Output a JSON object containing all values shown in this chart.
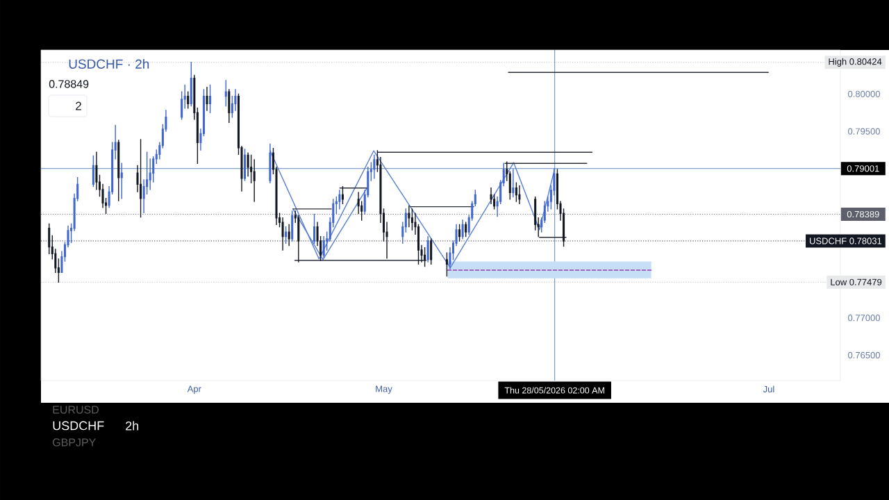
{
  "chart_data": {
    "type": "candlestick",
    "title": "USDCHF · 2h",
    "annotations": [
      "0.78849",
      "2",
      "EURUSD",
      "USDCHF",
      "2h",
      "GBPJPY"
    ],
    "x": [
      "2026-03-09T00:00",
      "2026-03-09T12:00",
      "2026-03-10T00:00",
      "2026-03-10T12:00",
      "2026-03-11T00:00",
      "2026-03-11T12:00",
      "2026-03-12T00:00",
      "2026-03-12T12:00",
      "2026-03-13T00:00",
      "2026-03-13T12:00",
      "2026-03-16T00:00",
      "2026-03-16T12:00",
      "2026-03-17T00:00",
      "2026-03-17T12:00",
      "2026-03-18T00:00",
      "2026-03-18T12:00",
      "2026-03-19T00:00",
      "2026-03-19T12:00",
      "2026-03-20T00:00",
      "2026-03-20T12:00",
      "2026-03-23T00:00",
      "2026-03-23T12:00",
      "2026-03-24T00:00",
      "2026-03-24T12:00",
      "2026-03-25T00:00",
      "2026-03-25T12:00",
      "2026-03-26T00:00",
      "2026-03-26T12:00",
      "2026-03-27T00:00",
      "2026-03-27T12:00",
      "2026-03-30T00:00",
      "2026-03-30T12:00",
      "2026-03-31T00:00",
      "2026-03-31T12:00",
      "2026-04-01T00:00",
      "2026-04-01T12:00",
      "2026-04-02T00:00",
      "2026-04-02T12:00",
      "2026-04-03T00:00",
      "2026-04-03T12:00",
      "2026-04-06T00:00",
      "2026-04-06T12:00",
      "2026-04-07T00:00",
      "2026-04-07T12:00",
      "2026-04-08T00:00",
      "2026-04-08T12:00",
      "2026-04-09T00:00",
      "2026-04-09T12:00",
      "2026-04-10T00:00",
      "2026-04-10T12:00",
      "2026-04-13T00:00",
      "2026-04-13T12:00",
      "2026-04-14T00:00",
      "2026-04-14T12:00",
      "2026-04-15T00:00",
      "2026-04-15T12:00",
      "2026-04-16T00:00",
      "2026-04-16T12:00",
      "2026-04-17T00:00",
      "2026-04-17T12:00",
      "2026-04-20T00:00",
      "2026-04-20T12:00",
      "2026-04-21T00:00",
      "2026-04-21T12:00",
      "2026-04-22T00:00",
      "2026-04-22T12:00",
      "2026-04-23T00:00",
      "2026-04-23T12:00",
      "2026-04-24T00:00",
      "2026-04-24T12:00",
      "2026-04-27T00:00",
      "2026-04-27T12:00",
      "2026-04-28T00:00",
      "2026-04-28T12:00",
      "2026-04-29T00:00",
      "2026-04-29T12:00",
      "2026-04-30T00:00",
      "2026-04-30T12:00",
      "2026-05-01T00:00",
      "2026-05-01T12:00",
      "2026-05-04T00:00",
      "2026-05-04T12:00",
      "2026-05-05T00:00",
      "2026-05-05T12:00",
      "2026-05-06T00:00",
      "2026-05-06T12:00",
      "2026-05-07T00:00",
      "2026-05-07T12:00",
      "2026-05-08T00:00",
      "2026-05-08T12:00",
      "2026-05-11T00:00",
      "2026-05-11T12:00",
      "2026-05-12T00:00",
      "2026-05-12T12:00",
      "2026-05-13T00:00",
      "2026-05-13T12:00",
      "2026-05-14T00:00",
      "2026-05-14T12:00",
      "2026-05-15T00:00",
      "2026-05-15T12:00",
      "2026-05-18T00:00",
      "2026-05-18T12:00",
      "2026-05-19T00:00",
      "2026-05-19T12:00",
      "2026-05-20T00:00",
      "2026-05-20T12:00",
      "2026-05-21T00:00",
      "2026-05-21T12:00",
      "2026-05-22T00:00",
      "2026-05-22T12:00",
      "2026-05-25T00:00",
      "2026-05-25T12:00",
      "2026-05-26T00:00",
      "2026-05-26T12:00",
      "2026-05-27T00:00",
      "2026-05-27T12:00",
      "2026-05-28T00:00",
      "2026-05-28T12:00",
      "2026-05-29T00:00",
      "2026-05-29T12:00"
    ],
    "ohlc": [
      [
        0.782,
        0.7826,
        0.7786,
        0.7795
      ],
      [
        0.7795,
        0.781,
        0.7779,
        0.7786
      ],
      [
        0.7786,
        0.7792,
        0.7761,
        0.7767
      ],
      [
        0.7767,
        0.7779,
        0.77479,
        0.7761
      ],
      [
        0.7761,
        0.7789,
        0.7761,
        0.7782
      ],
      [
        0.7782,
        0.7801,
        0.7776,
        0.7798
      ],
      [
        0.7798,
        0.7823,
        0.7795,
        0.7817
      ],
      [
        0.7817,
        0.7826,
        0.7801,
        0.782
      ],
      [
        0.782,
        0.7866,
        0.7817,
        0.786
      ],
      [
        0.786,
        0.7888,
        0.7857,
        0.7879
      ],
      [
        0.7879,
        0.7917,
        0.7876,
        0.7904
      ],
      [
        0.7904,
        0.7922,
        0.7872,
        0.7882
      ],
      [
        0.7882,
        0.7891,
        0.7863,
        0.7872
      ],
      [
        0.7872,
        0.7879,
        0.7848,
        0.7854
      ],
      [
        0.7854,
        0.786,
        0.784,
        0.7851
      ],
      [
        0.7851,
        0.7876,
        0.7848,
        0.7869
      ],
      [
        0.7869,
        0.7935,
        0.7866,
        0.7925
      ],
      [
        0.7925,
        0.7958,
        0.7913,
        0.7935
      ],
      [
        0.7935,
        0.7938,
        0.7857,
        0.7888
      ],
      [
        0.7888,
        0.7907,
        0.786,
        0.7894
      ],
      [
        0.7894,
        0.7904,
        0.7869,
        0.7879
      ],
      [
        0.7879,
        0.7939,
        0.7835,
        0.786
      ],
      [
        0.786,
        0.7885,
        0.7841,
        0.7876
      ],
      [
        0.7876,
        0.7922,
        0.7866,
        0.7885
      ],
      [
        0.7885,
        0.7913,
        0.7872,
        0.7894
      ],
      [
        0.7894,
        0.7916,
        0.7882,
        0.7913
      ],
      [
        0.7913,
        0.7925,
        0.7907,
        0.7919
      ],
      [
        0.7919,
        0.7935,
        0.7913,
        0.7931
      ],
      [
        0.7931,
        0.7959,
        0.7928,
        0.7953
      ],
      [
        0.7953,
        0.7978,
        0.795,
        0.7969
      ],
      [
        0.7969,
        0.8003,
        0.7966,
        0.7993
      ],
      [
        0.7993,
        0.8012,
        0.7981,
        0.7997
      ],
      [
        0.7997,
        0.8003,
        0.7981,
        0.7987
      ],
      [
        0.7987,
        0.80424,
        0.7984,
        0.8021
      ],
      [
        0.8021,
        0.8025,
        0.7966,
        0.7975
      ],
      [
        0.7975,
        0.7981,
        0.7907,
        0.7935
      ],
      [
        0.7935,
        0.7953,
        0.7925,
        0.7947
      ],
      [
        0.7947,
        0.8006,
        0.7944,
        0.7997
      ],
      [
        0.7997,
        0.8009,
        0.7978,
        0.7987
      ],
      [
        0.7987,
        0.8012,
        0.7975,
        0.7997
      ],
      [
        0.7997,
        0.8018,
        0.7984,
        0.8003
      ],
      [
        0.8003,
        0.8006,
        0.7962,
        0.7975
      ],
      [
        0.7975,
        0.7997,
        0.7969,
        0.7987
      ],
      [
        0.7987,
        0.8006,
        0.7978,
        0.7997
      ],
      [
        0.7997,
        0.8,
        0.7919,
        0.7928
      ],
      [
        0.7928,
        0.793,
        0.787,
        0.7887
      ],
      [
        0.7887,
        0.7926,
        0.7884,
        0.7918
      ],
      [
        0.7918,
        0.7921,
        0.789,
        0.7902
      ],
      [
        0.7902,
        0.7918,
        0.7881,
        0.7896
      ],
      [
        0.7896,
        0.7912,
        0.7856,
        0.7884
      ],
      [
        0.7884,
        0.7933,
        0.7881,
        0.7921
      ],
      [
        0.7921,
        0.7927,
        0.7893,
        0.7899
      ],
      [
        0.7899,
        0.7902,
        0.7825,
        0.7834
      ],
      [
        0.7834,
        0.784,
        0.7822,
        0.7828
      ],
      [
        0.7828,
        0.7834,
        0.7791,
        0.7809
      ],
      [
        0.7809,
        0.7822,
        0.78,
        0.7815
      ],
      [
        0.7815,
        0.7825,
        0.7797,
        0.7806
      ],
      [
        0.7806,
        0.7843,
        0.7803,
        0.7837
      ],
      [
        0.7837,
        0.7843,
        0.7828,
        0.7834
      ],
      [
        0.7834,
        0.7837,
        0.7775,
        0.7803
      ],
      [
        0.7803,
        0.7839,
        0.78,
        0.7822
      ],
      [
        0.7822,
        0.7828,
        0.7797,
        0.7803
      ],
      [
        0.7803,
        0.7809,
        0.7777,
        0.7784
      ],
      [
        0.7784,
        0.7809,
        0.7781,
        0.7803
      ],
      [
        0.7803,
        0.7815,
        0.7791,
        0.7806
      ],
      [
        0.7806,
        0.7834,
        0.7803,
        0.7828
      ],
      [
        0.7828,
        0.7859,
        0.7822,
        0.7853
      ],
      [
        0.7853,
        0.7862,
        0.784,
        0.7856
      ],
      [
        0.7856,
        0.7871,
        0.7846,
        0.7865
      ],
      [
        0.7865,
        0.7876,
        0.7853,
        0.7859
      ],
      [
        0.7859,
        0.7868,
        0.784,
        0.785
      ],
      [
        0.785,
        0.7856,
        0.7831,
        0.7843
      ],
      [
        0.7843,
        0.7871,
        0.7839,
        0.7865
      ],
      [
        0.7865,
        0.7902,
        0.7862,
        0.7896
      ],
      [
        0.7896,
        0.7908,
        0.7884,
        0.7899
      ],
      [
        0.7899,
        0.7918,
        0.7887,
        0.7912
      ],
      [
        0.7912,
        0.7924,
        0.7896,
        0.7905
      ],
      [
        0.7905,
        0.7915,
        0.7828,
        0.784
      ],
      [
        0.784,
        0.7846,
        0.7803,
        0.7815
      ],
      [
        0.7815,
        0.7828,
        0.778,
        0.7809
      ],
      [
        0.7809,
        0.7828,
        0.78,
        0.7822
      ],
      [
        0.7822,
        0.7846,
        0.7815,
        0.784
      ],
      [
        0.784,
        0.785,
        0.7822,
        0.7834
      ],
      [
        0.7834,
        0.7846,
        0.7818,
        0.7828
      ],
      [
        0.7828,
        0.784,
        0.7812,
        0.7822
      ],
      [
        0.7822,
        0.7825,
        0.7772,
        0.7791
      ],
      [
        0.7791,
        0.7797,
        0.7775,
        0.7784
      ],
      [
        0.7784,
        0.7794,
        0.7769,
        0.7778
      ],
      [
        0.7778,
        0.7809,
        0.7775,
        0.7803
      ],
      [
        0.7803,
        0.7806,
        0.7772,
        0.7778
      ],
      [
        0.7778,
        0.7787,
        0.7756,
        0.7772
      ],
      [
        0.7772,
        0.7794,
        0.7766,
        0.7787
      ],
      [
        0.7787,
        0.7803,
        0.7778,
        0.78
      ],
      [
        0.78,
        0.7825,
        0.7797,
        0.7818
      ],
      [
        0.7818,
        0.7825,
        0.7803,
        0.7809
      ],
      [
        0.7809,
        0.7831,
        0.7806,
        0.7825
      ],
      [
        0.7825,
        0.7828,
        0.7809,
        0.7815
      ],
      [
        0.7815,
        0.7837,
        0.7812,
        0.7834
      ],
      [
        0.7834,
        0.7856,
        0.7831,
        0.7853
      ],
      [
        0.7853,
        0.7871,
        0.785,
        0.7865
      ],
      [
        0.7865,
        0.7874,
        0.7853,
        0.7859
      ],
      [
        0.7859,
        0.7865,
        0.7846,
        0.785
      ],
      [
        0.785,
        0.7862,
        0.7836,
        0.7856
      ],
      [
        0.7856,
        0.7884,
        0.7853,
        0.7881
      ],
      [
        0.7881,
        0.7907,
        0.7877,
        0.7899
      ],
      [
        0.7899,
        0.7909,
        0.7884,
        0.7893
      ],
      [
        0.7893,
        0.7896,
        0.7859,
        0.7868
      ],
      [
        0.7868,
        0.7899,
        0.7862,
        0.7874
      ],
      [
        0.7874,
        0.7881,
        0.7856,
        0.7865
      ],
      [
        0.7865,
        0.7877,
        0.7853,
        0.7859
      ],
      [
        0.7859,
        0.7862,
        0.7818,
        0.7825
      ],
      [
        0.7825,
        0.7834,
        0.7809,
        0.7822
      ],
      [
        0.7822,
        0.7834,
        0.7815,
        0.7831
      ],
      [
        0.7831,
        0.7856,
        0.7828,
        0.785
      ],
      [
        0.785,
        0.7862,
        0.7843,
        0.7856
      ],
      [
        0.7856,
        0.7877,
        0.7846,
        0.7871
      ],
      [
        0.7871,
        0.79,
        0.7865,
        0.7893
      ],
      [
        0.7893,
        0.7899,
        0.7846,
        0.7853
      ],
      [
        0.7853,
        0.7856,
        0.7831,
        0.784
      ],
      [
        0.784,
        0.7846,
        0.7796,
        0.78031
      ]
    ],
    "colors": [
      "#131722",
      "#131722",
      "#131722",
      "#131722",
      "#3f66d1",
      "#3f66d1",
      "#3f66d1",
      "#3f66d1",
      "#3f66d1",
      "#3f66d1",
      "#3f66d1",
      "#131722",
      "#131722",
      "#131722",
      "#131722",
      "#3f66d1",
      "#3f66d1",
      "#3f66d1",
      "#131722",
      "#3f66d1",
      "#131722",
      "#131722",
      "#3f66d1",
      "#3f66d1",
      "#3f66d1",
      "#3f66d1",
      "#3f66d1",
      "#3f66d1",
      "#3f66d1",
      "#3f66d1",
      "#3f66d1",
      "#3f66d1",
      "#131722",
      "#3f66d1",
      "#131722",
      "#131722",
      "#3f66d1",
      "#3f66d1",
      "#131722",
      "#3f66d1",
      "#3f66d1",
      "#131722",
      "#3f66d1",
      "#3f66d1",
      "#131722",
      "#131722",
      "#3f66d1",
      "#131722",
      "#131722",
      "#131722",
      "#3f66d1",
      "#131722",
      "#131722",
      "#131722",
      "#131722",
      "#3f66d1",
      "#131722",
      "#3f66d1",
      "#131722",
      "#131722",
      "#3f66d1",
      "#131722",
      "#131722",
      "#3f66d1",
      "#3f66d1",
      "#3f66d1",
      "#3f66d1",
      "#3f66d1",
      "#3f66d1",
      "#131722",
      "#131722",
      "#131722",
      "#3f66d1",
      "#3f66d1",
      "#3f66d1",
      "#3f66d1",
      "#131722",
      "#131722",
      "#131722",
      "#131722",
      "#3f66d1",
      "#3f66d1",
      "#131722",
      "#131722",
      "#131722",
      "#131722",
      "#131722",
      "#131722",
      "#3f66d1",
      "#131722",
      "#131722",
      "#3f66d1",
      "#3f66d1",
      "#3f66d1",
      "#131722",
      "#3f66d1",
      "#131722",
      "#3f66d1",
      "#3f66d1",
      "#3f66d1",
      "#131722",
      "#131722",
      "#3f66d1",
      "#3f66d1",
      "#3f66d1",
      "#131722",
      "#131722",
      "#3f66d1",
      "#131722",
      "#131722",
      "#131722",
      "#131722",
      "#3f66d1",
      "#3f66d1",
      "#3f66d1",
      "#3f66d1",
      "#3f66d1",
      "#131722",
      "#131722",
      "#131722"
    ],
    "series": [
      {
        "type": "line",
        "color": "#c6dff7",
        "x": [
          "2026-05-11T03:00",
          "2026-06-12T09:00"
        ],
        "values": [
          0.7775,
          0.7775
        ],
        "lower": [
          0.7753,
          0.7753
        ],
        "upper": [
          0.7775,
          0.7775
        ]
      },
      {
        "type": "line",
        "color": "#9b3cb7",
        "line_style": "dashed",
        "x": [
          "2026-05-11T03:00",
          "2026-06-12T09:00"
        ],
        "values": [
          0.7764,
          0.7764
        ]
      },
      {
        "type": "line",
        "color": "#5a7fd0",
        "x": [
          "2026-04-13T00:00",
          "2026-04-20T18:00",
          "2026-04-29T10:00",
          "2026-05-11T13:00",
          "2026-05-21T14:00",
          "2026-05-25T16:00",
          "2026-05-28T02:00"
        ],
        "values": [
          0.7924,
          0.7779,
          0.7924,
          0.7767,
          0.7908,
          0.7818,
          0.79
        ]
      },
      {
        "type": "line",
        "color": "#5a7fd0",
        "x": [
          "2026-04-16T15:00",
          "2026-04-21T09:00",
          "2026-04-28T08:00"
        ],
        "values": [
          0.7846,
          0.7778,
          0.7874
        ]
      },
      {
        "type": "line",
        "color": "#2a2e39",
        "x": [
          "2026-05-20T18:00",
          "2026-06-30T22:00"
        ],
        "values": [
          0.8029,
          0.8029
        ]
      },
      {
        "type": "line",
        "color": "#2a2e39",
        "x": [
          "2026-04-30T01:00",
          "2026-06-03T00:00"
        ],
        "values": [
          0.7922,
          0.7922
        ]
      },
      {
        "type": "line",
        "color": "#2a2e39",
        "x": [
          "2026-05-20T05:00",
          "2026-06-02T04:00"
        ],
        "values": [
          0.7907,
          0.7907
        ]
      },
      {
        "type": "line",
        "color": "#2a2e39",
        "x": [
          "2026-04-16T15:00",
          "2026-04-22T17:00"
        ],
        "values": [
          0.7846,
          0.7846
        ]
      },
      {
        "type": "line",
        "color": "#2a2e39",
        "x": [
          "2026-04-24T01:00",
          "2026-04-28T08:00"
        ],
        "values": [
          0.7874,
          0.7874
        ]
      },
      {
        "type": "line",
        "color": "#2a2e39",
        "x": [
          "2026-05-05T05:00",
          "2026-05-15T06:00"
        ],
        "values": [
          0.7849,
          0.7849
        ]
      },
      {
        "type": "line",
        "color": "#2a2e39",
        "x": [
          "2026-04-16T22:00",
          "2026-05-07T17:00"
        ],
        "values": [
          0.7777,
          0.7777
        ]
      },
      {
        "type": "line",
        "color": "#2a2e39",
        "x": [
          "2026-05-25T16:00",
          "2026-05-29T21:00"
        ],
        "values": [
          0.7808,
          0.7808
        ]
      }
    ],
    "ref_lines": [
      {
        "axis": "y",
        "value": 0.80424,
        "label": "High 0.80424",
        "color": "#b2b5be",
        "line_style": "dotted"
      },
      {
        "axis": "y",
        "value": 0.79001,
        "label": "0.79001",
        "color": "#4e7db5"
      },
      {
        "axis": "y",
        "value": 0.78389,
        "label": "0.78389",
        "color": "#5d606b",
        "line_style": "dotted"
      },
      {
        "axis": "y",
        "value": 0.78031,
        "label": "USDCHF 0.78031",
        "color": "#131722",
        "line_style": "dotted"
      },
      {
        "axis": "y",
        "value": 0.77479,
        "label": "Low 0.77479",
        "color": "#b2b5be",
        "line_style": "dotted"
      },
      {
        "axis": "x",
        "value": "2026-05-28T02:00",
        "label": "Thu 28/05/2026 02:00 AM",
        "color": "#4e7db5"
      }
    ],
    "xlim": [
      "2026-03-07T17:00",
      "2026-07-12T08:00"
    ],
    "xticks": [
      {
        "value": "2026-04-01",
        "label": "Apr"
      },
      {
        "value": "2026-05-01",
        "label": "May"
      },
      {
        "value": "2026-07-01",
        "label": "Jul"
      }
    ],
    "ylim": [
      0.7616,
      0.8059
    ],
    "yticks": [
      {
        "value": 0.8,
        "label": "0.80000"
      },
      {
        "value": 0.795,
        "label": "0.79500"
      },
      {
        "value": 0.77,
        "label": "0.77000"
      },
      {
        "value": 0.765,
        "label": "0.76500"
      }
    ]
  }
}
